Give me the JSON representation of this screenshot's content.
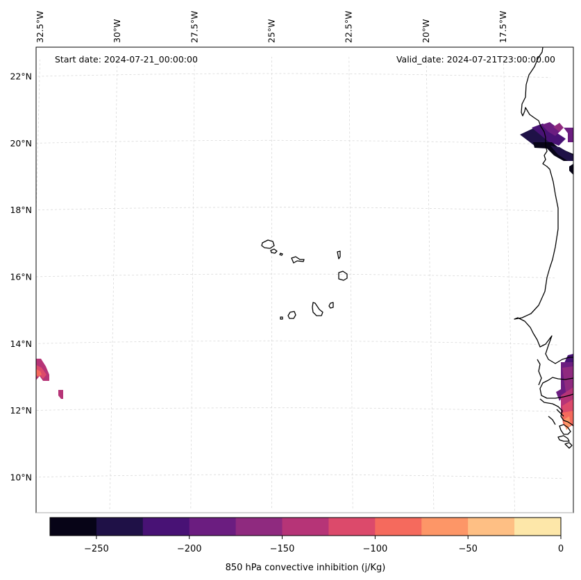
{
  "map": {
    "title_left": "Start date: 2024-07-21_00:00:00",
    "title_right": "Valid_date: 2024-07-21T23:00:00.00",
    "lon_labels": [
      "32.5°W",
      "30°W",
      "27.5°W",
      "25°W",
      "22.5°W",
      "20°W",
      "17.5°W"
    ],
    "lat_labels": [
      "22°N",
      "20°N",
      "18°N",
      "16°N",
      "14°N",
      "12°N",
      "10°N"
    ],
    "lon_values": [
      -32.5,
      -30,
      -27.5,
      -25,
      -22.5,
      -20,
      -17.5
    ],
    "lat_values": [
      22,
      20,
      18,
      16,
      14,
      12,
      10
    ],
    "extent": {
      "lon_min": -33.0,
      "lon_max": -16.5,
      "lat_min": 9.0,
      "lat_max": 22.7
    },
    "field": "850 hPa convective inhibition",
    "features": [
      "Cape Verde islands",
      "West African coastline"
    ]
  },
  "colorbar": {
    "label": "850 hPa convective inhibition (j/Kg)",
    "min": -275,
    "max": 0,
    "levels": [
      -275,
      -250,
      -225,
      -200,
      -175,
      -150,
      -125,
      -100,
      -75,
      -50,
      -25,
      0
    ],
    "colors": [
      "#070417",
      "#1f1147",
      "#481275",
      "#6b1d80",
      "#8f2a7f",
      "#b63477",
      "#dc4a6b",
      "#f56a5d",
      "#fd9667",
      "#febf84",
      "#fde7a9"
    ],
    "tick_values": [
      -250,
      -200,
      -150,
      -100,
      -50,
      0
    ],
    "tick_labels": [
      "−250",
      "−200",
      "−150",
      "−100",
      "−50",
      "0"
    ]
  }
}
